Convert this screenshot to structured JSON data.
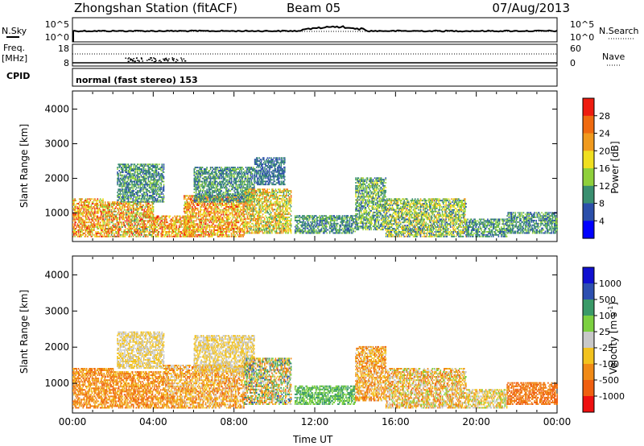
{
  "header": {
    "station": "Zhongshan Station (fitACF)",
    "beam": "Beam 05",
    "date": "07/Aug/2013",
    "mode": "normal (fast stereo) 153"
  },
  "top_panels": {
    "nsky_label": "N.Sky",
    "nsearch_label": "N.Search",
    "freq_label_1": "Freq.",
    "freq_label_2": "[MHz]",
    "cpid_label": "CPID",
    "nave_label": "Nave",
    "noise_left_ticks": [
      "10^5",
      "10^0"
    ],
    "noise_right_ticks": [
      "10^5",
      "10^0"
    ],
    "freq_ticks": [
      "18",
      "8"
    ],
    "nave_ticks": [
      "60",
      "0"
    ]
  },
  "colors": {
    "power": [
      "#0000ff",
      "#2b4faa",
      "#3a8f70",
      "#8fd03b",
      "#f0df20",
      "#f09a1e",
      "#ef6a10",
      "#ee1c10"
    ],
    "velocity": [
      "#ee1010",
      "#ef5f10",
      "#f08a16",
      "#f2c21e",
      "#c8c8c8",
      "#7cd040",
      "#3a9a68",
      "#2d4fb0",
      "#1010d0"
    ]
  },
  "chart_data": [
    {
      "type": "heatmap",
      "panel": "power",
      "ylabel": "Slant Range [km]",
      "xlim": [
        0,
        24
      ],
      "ylim": [
        200,
        4500
      ],
      "yticks": [
        1000,
        2000,
        3000,
        4000
      ],
      "xticks": [
        "00:00",
        "04:00",
        "08:00",
        "12:00",
        "16:00",
        "20:00",
        "00:00"
      ],
      "colorbar": {
        "label": "Power [dB]",
        "ticks": [
          "4",
          "8",
          "12",
          "16",
          "20",
          "24",
          "28"
        ]
      },
      "scatter_regions": [
        {
          "t0": 0.0,
          "t1": 1.5,
          "r0": 300,
          "r1": 1400,
          "lo": 3,
          "hi": 7
        },
        {
          "t0": 1.5,
          "t1": 4.0,
          "r0": 300,
          "r1": 1300,
          "lo": 2,
          "hi": 7
        },
        {
          "t0": 2.2,
          "t1": 4.5,
          "r0": 1300,
          "r1": 2400,
          "lo": 1,
          "hi": 3
        },
        {
          "t0": 4.0,
          "t1": 6.0,
          "r0": 300,
          "r1": 900,
          "lo": 3,
          "hi": 7
        },
        {
          "t0": 5.5,
          "t1": 8.5,
          "r0": 300,
          "r1": 1500,
          "lo": 3,
          "hi": 7
        },
        {
          "t0": 6.0,
          "t1": 9.0,
          "r0": 1300,
          "r1": 2300,
          "lo": 1,
          "hi": 3
        },
        {
          "t0": 8.5,
          "t1": 10.8,
          "r0": 400,
          "r1": 1700,
          "lo": 2,
          "hi": 6
        },
        {
          "t0": 9.0,
          "t1": 10.5,
          "r0": 1800,
          "r1": 2600,
          "lo": 1,
          "hi": 2
        },
        {
          "t0": 11.0,
          "t1": 14.0,
          "r0": 400,
          "r1": 900,
          "lo": 1,
          "hi": 3
        },
        {
          "t0": 14.0,
          "t1": 15.5,
          "r0": 500,
          "r1": 2000,
          "lo": 1,
          "hi": 4
        },
        {
          "t0": 15.5,
          "t1": 19.5,
          "r0": 300,
          "r1": 1400,
          "lo": 1,
          "hi": 5
        },
        {
          "t0": 19.5,
          "t1": 21.5,
          "r0": 300,
          "r1": 800,
          "lo": 1,
          "hi": 3
        },
        {
          "t0": 21.5,
          "t1": 24.0,
          "r0": 400,
          "r1": 1000,
          "lo": 1,
          "hi": 3
        }
      ]
    },
    {
      "type": "heatmap",
      "panel": "velocity",
      "ylabel": "Slant Range [km]",
      "xlabel": "Time UT",
      "xlim": [
        0,
        24
      ],
      "ylim": [
        200,
        4500
      ],
      "yticks": [
        1000,
        2000,
        3000,
        4000
      ],
      "xticks": [
        "00:00",
        "04:00",
        "08:00",
        "12:00",
        "16:00",
        "20:00",
        "00:00"
      ],
      "colorbar": {
        "label": "Velocity [m s",
        "label_sup": "-1",
        "label_end": "]",
        "ticks": [
          "1000",
          "500",
          "100",
          "25",
          "-25",
          "-100",
          "-500",
          "-1000"
        ]
      },
      "scatter_regions": [
        {
          "t0": 0.0,
          "t1": 2.0,
          "r0": 300,
          "r1": 1400,
          "lo": 1,
          "hi": 3
        },
        {
          "t0": 2.0,
          "t1": 4.5,
          "r0": 300,
          "r1": 1300,
          "lo": 1,
          "hi": 3
        },
        {
          "t0": 2.2,
          "t1": 4.5,
          "r0": 1400,
          "r1": 2400,
          "lo": 3,
          "hi": 4
        },
        {
          "t0": 4.5,
          "t1": 8.5,
          "r0": 300,
          "r1": 1500,
          "lo": 1,
          "hi": 4
        },
        {
          "t0": 6.0,
          "t1": 9.0,
          "r0": 1300,
          "r1": 2300,
          "lo": 3,
          "hi": 4
        },
        {
          "t0": 8.5,
          "t1": 10.8,
          "r0": 400,
          "r1": 1700,
          "lo": 1,
          "hi": 7
        },
        {
          "t0": 11.0,
          "t1": 14.0,
          "r0": 400,
          "r1": 900,
          "lo": 5,
          "hi": 6
        },
        {
          "t0": 14.0,
          "t1": 15.5,
          "r0": 500,
          "r1": 2000,
          "lo": 1,
          "hi": 4
        },
        {
          "t0": 15.5,
          "t1": 19.5,
          "r0": 300,
          "r1": 1400,
          "lo": 1,
          "hi": 5
        },
        {
          "t0": 19.5,
          "t1": 21.5,
          "r0": 300,
          "r1": 800,
          "lo": 2,
          "hi": 5
        },
        {
          "t0": 21.5,
          "t1": 24.0,
          "r0": 400,
          "r1": 1000,
          "lo": 1,
          "hi": 2
        }
      ]
    }
  ]
}
